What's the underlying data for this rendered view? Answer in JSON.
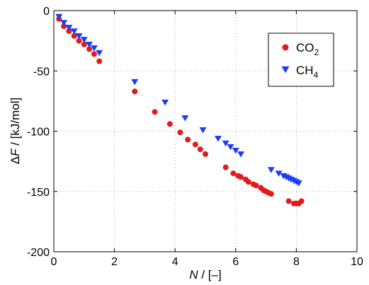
{
  "chart_data": {
    "type": "scatter",
    "xlabel": {
      "italic": "N",
      "rest": " / [–]"
    },
    "ylabel": {
      "pre": "Δ",
      "italic": "F",
      "rest": " / [kJ/mol]"
    },
    "xlim": [
      0,
      10
    ],
    "ylim": [
      -200,
      0
    ],
    "xticks": [
      "0",
      "2",
      "4",
      "6",
      "8",
      "10"
    ],
    "yticks": [
      "0",
      "-50",
      "-100",
      "-150",
      "-200"
    ],
    "grid": true,
    "legend_position": "top-right",
    "series": [
      {
        "name": "CO",
        "name_sub": "2",
        "color": "#e31a1c",
        "marker": "circle",
        "x": [
          0.17,
          0.33,
          0.5,
          0.67,
          0.83,
          1.0,
          1.17,
          1.33,
          1.5,
          2.67,
          3.33,
          3.83,
          4.17,
          4.42,
          4.67,
          4.83,
          5.0,
          5.67,
          5.92,
          6.08,
          6.17,
          6.33,
          6.42,
          6.58,
          6.67,
          6.83,
          6.92,
          7.0,
          7.08,
          7.17,
          7.75,
          7.92,
          8.0,
          8.08,
          8.17
        ],
        "y": [
          -7,
          -13,
          -17,
          -21,
          -25,
          -28,
          -32,
          -36,
          -42,
          -67,
          -84,
          -94,
          -101,
          -107,
          -111,
          -115,
          -119,
          -130,
          -135,
          -137,
          -138,
          -140,
          -142,
          -144,
          -145,
          -147,
          -149,
          -150,
          -151,
          -152,
          -158,
          -160,
          -160,
          -160,
          -158
        ]
      },
      {
        "name": "CH",
        "name_sub": "4",
        "color": "#1a3cff",
        "marker": "triangle-down",
        "x": [
          0.17,
          0.33,
          0.5,
          0.67,
          0.83,
          1.0,
          1.17,
          1.33,
          1.5,
          2.67,
          3.67,
          4.33,
          4.92,
          5.42,
          5.67,
          5.83,
          6.0,
          6.17,
          7.17,
          7.42,
          7.58,
          7.67,
          7.75,
          7.83,
          7.92,
          8.0,
          8.08
        ],
        "y": [
          -5,
          -10,
          -14,
          -17,
          -21,
          -24,
          -28,
          -31,
          -35,
          -59,
          -76,
          -89,
          -99,
          -106,
          -110,
          -113,
          -116,
          -119,
          -132,
          -135,
          -137,
          -138,
          -139,
          -140,
          -141,
          -142,
          -143
        ]
      }
    ]
  }
}
